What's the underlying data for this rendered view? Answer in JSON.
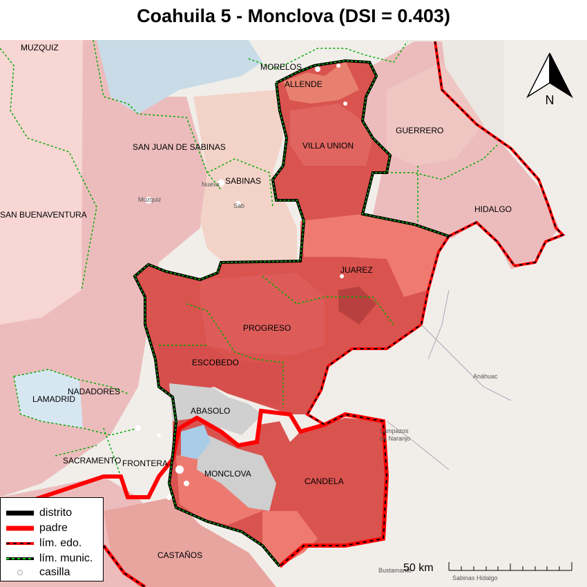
{
  "title": "Coahuila 5 - Monclova (DSI = 0.403)",
  "municipalities": {
    "muzquiz": "MUZQUIZ",
    "morelos": "MORELOS",
    "allende": "ALLENDE",
    "guerrero": "GUERRERO",
    "villa_union": "VILLA UNION",
    "san_juan": "SAN JUAN DE SABINAS",
    "sabinas": "SABINAS",
    "san_buenaventura": "SAN BUENAVENTURA",
    "hidalgo": "HIDALGO",
    "juarez": "JUAREZ",
    "progreso": "PROGRESO",
    "escobedo": "ESCOBEDO",
    "lamadrid": "LAMADRID",
    "nadadores": "NADADORES",
    "abasolo": "ABASOLO",
    "sacramento": "SACRAMENTO",
    "frontera": "FRONTERA",
    "monclova": "MONCLOVA",
    "candela": "CANDELA",
    "castanos": "CASTAÑOS"
  },
  "basemap_places": {
    "anahuac": "Anáhuac",
    "lampazos": "Lampazos",
    "de_naranjo": "de Naranjo",
    "bustamante": "Bustamante",
    "sabinas_hidalgo": "Sabinas Hidalgo",
    "nueva_rosita": "Nueva",
    "sabinas_town": "Sab",
    "muzquiz_town": "Múzquiz"
  },
  "legend": {
    "distrito": "distrito",
    "padre": "padre",
    "lim_edo": "lím. edo.",
    "lim_munic": "lím. munic.",
    "casilla": "casilla"
  },
  "north_arrow": {
    "label": "N"
  },
  "scale": {
    "label": "50 km"
  },
  "colors": {
    "district_fill": "#d9534f",
    "district_dark": "#c94443",
    "district_light": "#ec7a70",
    "outside_fill": "#ecbcbc",
    "outside_light": "#f6d2cc",
    "water": "#a9cde6",
    "gray_area": "#cfcfcf",
    "basemap": "#f1eeea",
    "district_border": "#000000",
    "parent_border": "#ff0000",
    "municipal_border": "#00aa00"
  }
}
